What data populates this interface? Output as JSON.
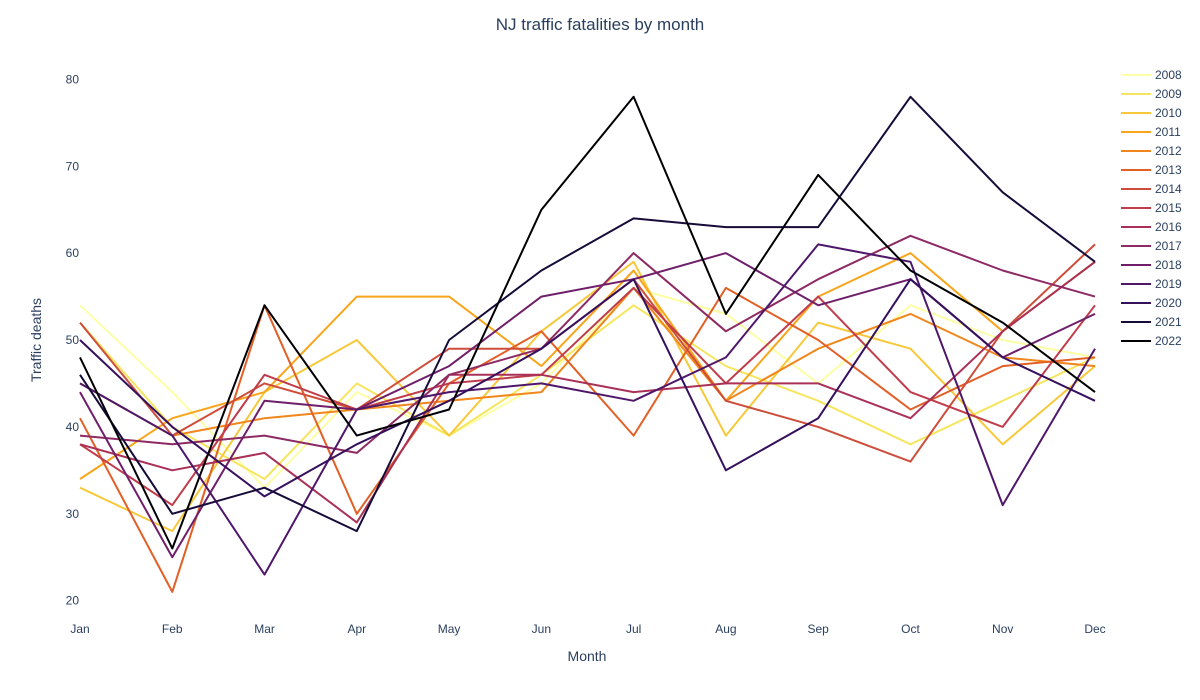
{
  "chart_data": {
    "type": "line",
    "title": "NJ traffic fatalities by month",
    "xlabel": "Month",
    "ylabel": "Traffic deaths",
    "categories": [
      "Jan",
      "Feb",
      "Mar",
      "Apr",
      "May",
      "Jun",
      "Jul",
      "Aug",
      "Sep",
      "Oct",
      "Nov",
      "Dec"
    ],
    "ylim": [
      18,
      82
    ],
    "yticks": [
      20,
      30,
      40,
      50,
      60,
      70,
      80
    ],
    "grid": false,
    "legend": "right",
    "series": [
      {
        "name": "2008",
        "color": "#fcffa4",
        "values": [
          54,
          44,
          33,
          44,
          39,
          45,
          56,
          53,
          45,
          54,
          50,
          48
        ]
      },
      {
        "name": "2009",
        "color": "#f6e55e",
        "values": [
          52,
          40,
          34,
          45,
          39,
          46,
          54,
          47,
          43,
          38,
          43,
          48
        ]
      },
      {
        "name": "2010",
        "color": "#f7c93a",
        "values": [
          33,
          28,
          44,
          50,
          39,
          51,
          59,
          39,
          52,
          49,
          38,
          47
        ]
      },
      {
        "name": "2011",
        "color": "#f8a51c",
        "values": [
          34,
          41,
          44,
          55,
          55,
          47,
          58,
          43,
          55,
          60,
          51,
          59
        ]
      },
      {
        "name": "2012",
        "color": "#f0861c",
        "values": [
          45,
          39,
          41,
          42,
          43,
          44,
          56,
          43,
          49,
          53,
          48,
          47
        ]
      },
      {
        "name": "2013",
        "color": "#e25f26",
        "values": [
          41,
          21,
          54,
          30,
          45,
          51,
          39,
          56,
          50,
          42,
          47,
          48
        ]
      },
      {
        "name": "2014",
        "color": "#ce4d3a",
        "values": [
          52,
          39,
          45,
          42,
          49,
          49,
          57,
          43,
          40,
          36,
          51,
          61
        ]
      },
      {
        "name": "2015",
        "color": "#c03c4b",
        "values": [
          38,
          31,
          46,
          42,
          45,
          46,
          56,
          45,
          55,
          44,
          40,
          54
        ]
      },
      {
        "name": "2016",
        "color": "#a93057",
        "values": [
          38,
          35,
          37,
          29,
          46,
          46,
          44,
          45,
          45,
          41,
          51,
          59
        ]
      },
      {
        "name": "2017",
        "color": "#8e2a63",
        "values": [
          39,
          38,
          39,
          37,
          46,
          49,
          60,
          51,
          57,
          62,
          58,
          55
        ]
      },
      {
        "name": "2018",
        "color": "#6f1f6a",
        "values": [
          44,
          25,
          43,
          42,
          47,
          55,
          57,
          60,
          54,
          57,
          48,
          53
        ]
      },
      {
        "name": "2019",
        "color": "#4e176a",
        "values": [
          45,
          39,
          23,
          42,
          44,
          45,
          43,
          48,
          61,
          59,
          31,
          49
        ]
      },
      {
        "name": "2020",
        "color": "#35105d",
        "values": [
          50,
          40,
          32,
          38,
          43,
          49,
          57,
          35,
          41,
          57,
          48,
          43
        ]
      },
      {
        "name": "2021",
        "color": "#160b39",
        "values": [
          46,
          30,
          33,
          28,
          50,
          58,
          64,
          63,
          63,
          78,
          67,
          59
        ]
      },
      {
        "name": "2022",
        "color": "#000004",
        "values": [
          48,
          26,
          54,
          39,
          42,
          65,
          78,
          53,
          69,
          58,
          52,
          44
        ]
      }
    ]
  }
}
